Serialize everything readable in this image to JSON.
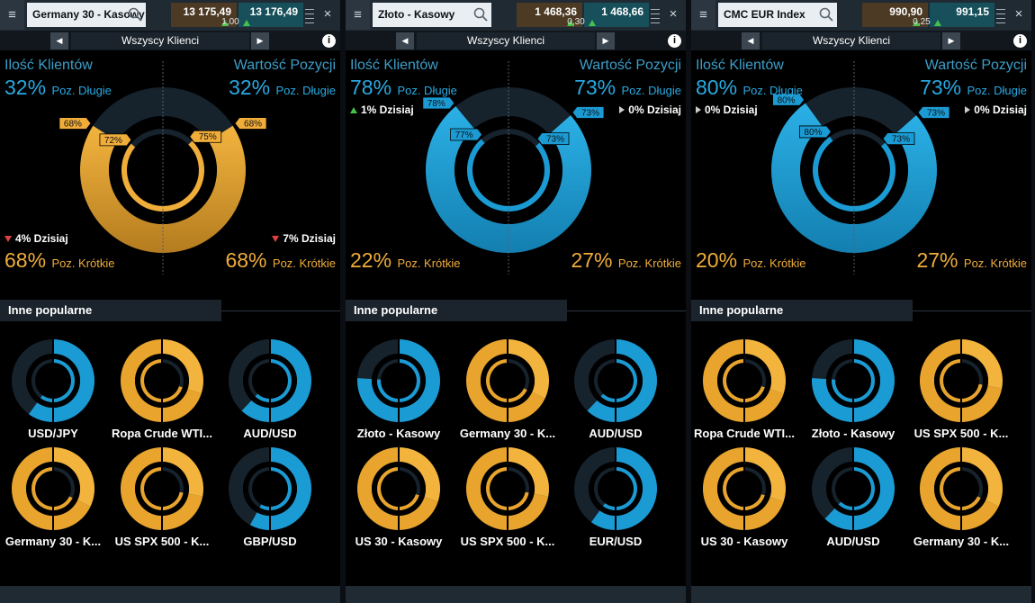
{
  "colors": {
    "long": "#1b9bd4",
    "short": "#e8a42c",
    "dark": "#16222c",
    "bg": "#000000"
  },
  "panels": [
    {
      "instrument": "Germany 30 - Kasowy",
      "sell": "13 175,49",
      "buy": "13 176,49",
      "spread": "1,00",
      "filter": "Wszyscy Klienci",
      "clients_title": "Ilość Klientów",
      "value_title": "Wartość Pozycji",
      "clients_long_pct": "32%",
      "value_long_pct": "32%",
      "long_label": "Poz. Długie",
      "short_label": "Poz. Krótkie",
      "clients_short_pct": "68%",
      "value_short_pct": "68%",
      "clients_today": "4% Dzisiaj",
      "value_today": "7% Dzisiaj",
      "dominant": "short",
      "outer_left_frac": 0.68,
      "outer_right_frac": 0.68,
      "inner_left_frac": 0.72,
      "inner_right_frac": 0.75,
      "tags": {
        "outer_left": "68%",
        "outer_right": "68%",
        "inner_left": "72%",
        "inner_right": "75%"
      },
      "popular_title": "Inne popularne",
      "popular": [
        {
          "name": "USD/JPY",
          "long": 0.6
        },
        {
          "name": "Ropa Crude WTI...",
          "long": 0.3
        },
        {
          "name": "AUD/USD",
          "long": 0.62
        },
        {
          "name": "Germany 30 - K...",
          "long": 0.32
        },
        {
          "name": "US SPX 500 - K...",
          "long": 0.28
        },
        {
          "name": "GBP/USD",
          "long": 0.58
        }
      ]
    },
    {
      "instrument": "Złoto - Kasowy",
      "sell": "1 468,36",
      "buy": "1 468,66",
      "spread": "0,30",
      "filter": "Wszyscy Klienci",
      "clients_title": "Ilość Klientów",
      "value_title": "Wartość Pozycji",
      "clients_long_pct": "78%",
      "value_long_pct": "73%",
      "long_label": "Poz. Długie",
      "short_label": "Poz. Krótkie",
      "clients_short_pct": "22%",
      "value_short_pct": "27%",
      "clients_today": "1% Dzisiaj",
      "value_today": "0% Dzisiaj",
      "dominant": "long",
      "outer_left_frac": 0.78,
      "outer_right_frac": 0.73,
      "inner_left_frac": 0.77,
      "inner_right_frac": 0.73,
      "tags": {
        "outer_left": "78%",
        "outer_right": "73%",
        "inner_left": "77%",
        "inner_right": "73%"
      },
      "popular_title": "Inne popularne",
      "popular": [
        {
          "name": "Złoto - Kasowy",
          "long": 0.76
        },
        {
          "name": "Germany 30 - K...",
          "long": 0.32
        },
        {
          "name": "AUD/USD",
          "long": 0.62
        },
        {
          "name": "US 30 - Kasowy",
          "long": 0.3
        },
        {
          "name": "US SPX 500 - K...",
          "long": 0.28
        },
        {
          "name": "EUR/USD",
          "long": 0.6
        }
      ]
    },
    {
      "instrument": "CMC EUR Index",
      "sell": "990,90",
      "buy": "991,15",
      "spread": "0,25",
      "filter": "Wszyscy Klienci",
      "clients_title": "Ilość Klientów",
      "value_title": "Wartość Pozycji",
      "clients_long_pct": "80%",
      "value_long_pct": "73%",
      "long_label": "Poz. Długie",
      "short_label": "Poz. Krótkie",
      "clients_short_pct": "20%",
      "value_short_pct": "27%",
      "clients_today": "0% Dzisiaj",
      "value_today": "0% Dzisiaj",
      "dominant": "long",
      "outer_left_frac": 0.8,
      "outer_right_frac": 0.73,
      "inner_left_frac": 0.8,
      "inner_right_frac": 0.73,
      "tags": {
        "outer_left": "80%",
        "outer_right": "73%",
        "inner_left": "80%",
        "inner_right": "73%"
      },
      "popular_title": "Inne popularne",
      "popular": [
        {
          "name": "Ropa Crude WTI...",
          "long": 0.3
        },
        {
          "name": "Złoto - Kasowy",
          "long": 0.76
        },
        {
          "name": "US SPX 500 - K...",
          "long": 0.28
        },
        {
          "name": "US 30 - Kasowy",
          "long": 0.3
        },
        {
          "name": "AUD/USD",
          "long": 0.62
        },
        {
          "name": "Germany 30 - K...",
          "long": 0.32
        }
      ]
    }
  ]
}
